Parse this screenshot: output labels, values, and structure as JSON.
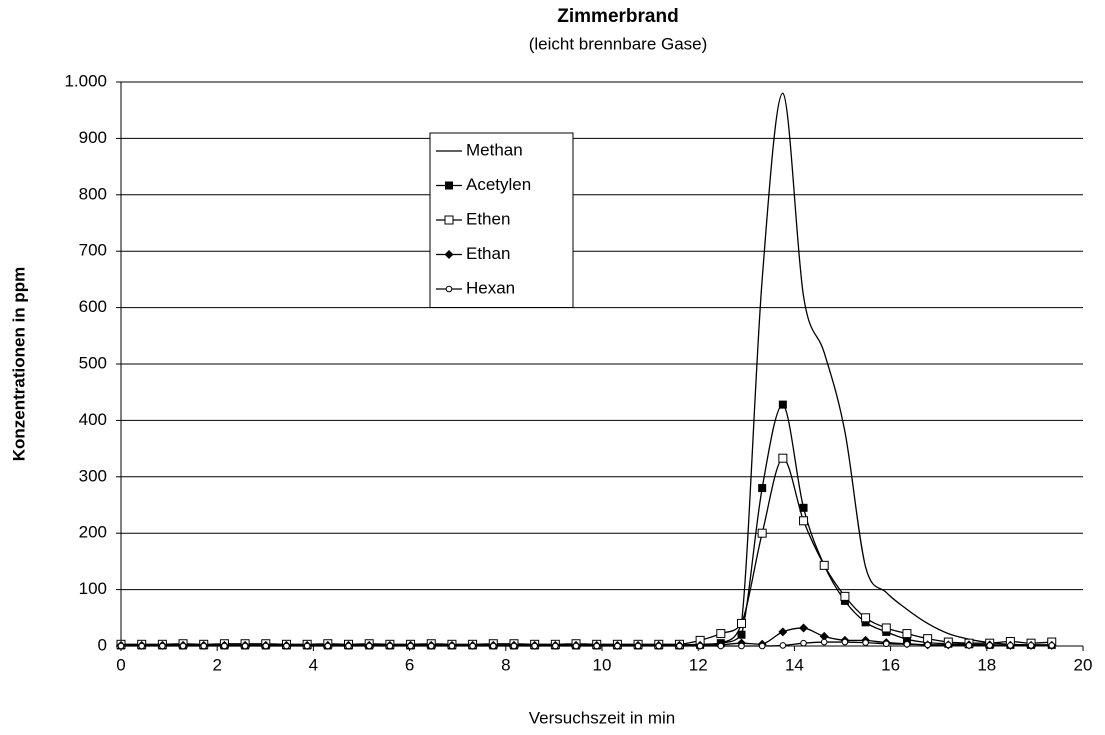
{
  "chart_data": {
    "type": "line",
    "title": "Zimmerbrand",
    "subtitle": "(leicht brennbare Gase)",
    "x_label": "Versuchszeit in min",
    "y_label": "Konzentrationen in ppm",
    "x": [
      0,
      0.43,
      0.86,
      1.29,
      1.72,
      2.15,
      2.58,
      3.01,
      3.44,
      3.87,
      4.3,
      4.73,
      5.16,
      5.59,
      6.02,
      6.45,
      6.88,
      7.31,
      7.74,
      8.17,
      8.6,
      9.03,
      9.46,
      9.89,
      10.32,
      10.75,
      11.18,
      11.61,
      12.04,
      12.47,
      12.9,
      13.33,
      13.76,
      14.19,
      14.62,
      15.05,
      15.48,
      15.91,
      16.34,
      16.77,
      17.2,
      17.63,
      18.06,
      18.49,
      18.92,
      19.35
    ],
    "series": [
      {
        "name": "Methan",
        "color": "#000000",
        "marker": "none",
        "values": [
          2,
          2,
          2,
          2,
          2,
          2,
          2,
          2,
          2,
          2,
          2,
          2,
          2,
          2,
          2,
          2,
          2,
          2,
          2,
          2,
          2,
          2,
          2,
          2,
          2,
          2,
          2,
          2,
          3,
          5,
          40,
          650,
          980,
          620,
          520,
          380,
          140,
          95,
          65,
          40,
          22,
          12,
          6,
          3,
          2,
          2
        ]
      },
      {
        "name": "Acetylen",
        "color": "#000000",
        "marker": "square-filled",
        "values": [
          1,
          1,
          1,
          1,
          1,
          1,
          1,
          1,
          1,
          1,
          1,
          1,
          1,
          1,
          1,
          1,
          1,
          1,
          1,
          1,
          1,
          1,
          1,
          1,
          1,
          1,
          1,
          1,
          2,
          5,
          20,
          280,
          428,
          245,
          143,
          80,
          42,
          25,
          12,
          6,
          4,
          3,
          2,
          2,
          2,
          2
        ]
      },
      {
        "name": "Ethen",
        "color": "#000000",
        "marker": "square-open",
        "values": [
          3,
          3,
          3,
          4,
          3,
          4,
          4,
          4,
          3,
          3,
          4,
          3,
          4,
          3,
          3,
          4,
          3,
          3,
          4,
          4,
          3,
          3,
          4,
          3,
          3,
          3,
          3,
          3,
          10,
          22,
          40,
          200,
          333,
          222,
          143,
          88,
          50,
          32,
          22,
          13,
          7,
          5,
          5,
          8,
          5,
          7
        ]
      },
      {
        "name": "Ethan",
        "color": "#000000",
        "marker": "diamond",
        "values": [
          1,
          1,
          1,
          1,
          1,
          1,
          1,
          1,
          1,
          1,
          1,
          1,
          1,
          1,
          1,
          1,
          1,
          1,
          1,
          1,
          1,
          1,
          1,
          1,
          1,
          1,
          1,
          1,
          1,
          2,
          5,
          3,
          25,
          32,
          17,
          10,
          10,
          6,
          4,
          2,
          2,
          2,
          2,
          1,
          1,
          1
        ]
      },
      {
        "name": "Hexan",
        "color": "#000000",
        "marker": "circle-open",
        "values": [
          0,
          0,
          0,
          0,
          0,
          0,
          0,
          0,
          0,
          0,
          0,
          0,
          0,
          0,
          0,
          0,
          0,
          0,
          0,
          0,
          0,
          0,
          0,
          0,
          0,
          0,
          0,
          0,
          0,
          0,
          0,
          0,
          1,
          5,
          7,
          7,
          6,
          4,
          3,
          2,
          2,
          1,
          1,
          1,
          1,
          1
        ]
      }
    ],
    "xlim": [
      0,
      20
    ],
    "xticks": [
      0,
      2,
      4,
      6,
      8,
      10,
      12,
      14,
      16,
      18,
      20
    ],
    "ylim": [
      0,
      1000
    ],
    "yticks": [
      0,
      100,
      200,
      300,
      400,
      500,
      600,
      700,
      800,
      900,
      {
        "value": 1000,
        "label": "1.000"
      }
    ],
    "grid": true,
    "legend": "top-center"
  }
}
